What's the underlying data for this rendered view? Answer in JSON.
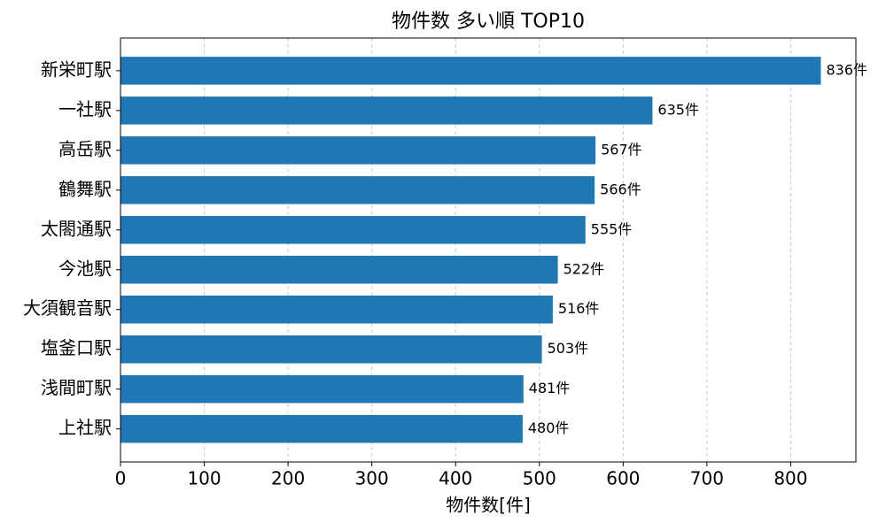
{
  "chart_data": {
    "type": "barh",
    "title": "物件数 多い順 TOP10",
    "xlabel": "物件数[件]",
    "categories": [
      "新栄町駅",
      "一社駅",
      "高岳駅",
      "鶴舞駅",
      "太閤通駅",
      "今池駅",
      "大須観音駅",
      "塩釜口駅",
      "浅間町駅",
      "上社駅"
    ],
    "values": [
      836,
      635,
      567,
      566,
      555,
      522,
      516,
      503,
      481,
      480
    ],
    "value_labels": [
      "836件",
      "635件",
      "567件",
      "566件",
      "555件",
      "522件",
      "516件",
      "503件",
      "481件",
      "480件"
    ],
    "color": "#1f77b4",
    "xlim": [
      0,
      877.8
    ],
    "xticks": [
      0,
      100,
      200,
      300,
      400,
      500,
      600,
      700,
      800
    ],
    "grid": true
  }
}
